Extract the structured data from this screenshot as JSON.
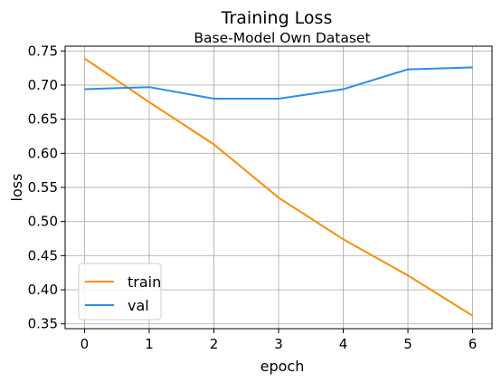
{
  "chart_data": {
    "type": "line",
    "title": "Training Loss",
    "subtitle": "Base-Model Own Dataset",
    "xlabel": "epoch",
    "ylabel": "loss",
    "x": [
      0,
      1,
      2,
      3,
      4,
      5,
      6
    ],
    "xlim": [
      -0.3,
      6.3
    ],
    "ylim": [
      0.343,
      0.757
    ],
    "xticks": [
      "0",
      "1",
      "2",
      "3",
      "4",
      "5",
      "6"
    ],
    "yticks": [
      "0.35",
      "0.40",
      "0.45",
      "0.50",
      "0.55",
      "0.60",
      "0.65",
      "0.70",
      "0.75"
    ],
    "grid": true,
    "legend_position": "lower-left",
    "series": [
      {
        "name": "train",
        "color": "#ff8c00",
        "values": [
          0.739,
          0.675,
          0.613,
          0.535,
          0.474,
          0.421,
          0.362
        ]
      },
      {
        "name": "val",
        "color": "#2b8ee8",
        "values": [
          0.694,
          0.697,
          0.68,
          0.68,
          0.694,
          0.723,
          0.726
        ]
      }
    ]
  }
}
